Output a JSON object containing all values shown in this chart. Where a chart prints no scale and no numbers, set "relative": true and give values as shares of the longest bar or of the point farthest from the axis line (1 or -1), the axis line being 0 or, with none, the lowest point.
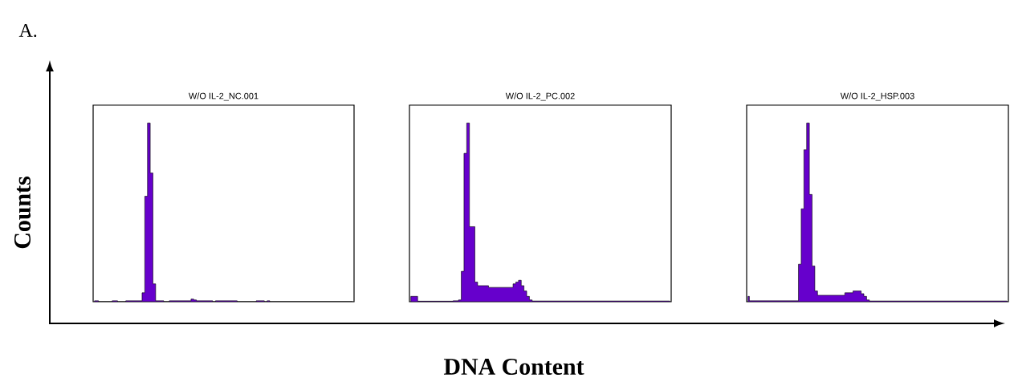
{
  "chart_data": [
    {
      "type": "area",
      "relative": true,
      "title": "W/O IL-2_NC.001",
      "ylabel": "Counts",
      "annotations": [
        "A."
      ],
      "categories": [
        null,
        null,
        null,
        null,
        null,
        null,
        null,
        null,
        null,
        null,
        null,
        null,
        null,
        null,
        null,
        null,
        null,
        null,
        null,
        null,
        null,
        null,
        null,
        null,
        null,
        null,
        null,
        null,
        null,
        null,
        null,
        null,
        null,
        null,
        null,
        null,
        null,
        null,
        null,
        null,
        null,
        null,
        null,
        null,
        null,
        null,
        null,
        null,
        null,
        null,
        null,
        null,
        null,
        null,
        null,
        null,
        null,
        null,
        null,
        null,
        null,
        null,
        null,
        null,
        null,
        null,
        null,
        null,
        null,
        null,
        null,
        null,
        null,
        null,
        null,
        null,
        null,
        null,
        null,
        null,
        null,
        null,
        null,
        null,
        null,
        null,
        null,
        null,
        null,
        null,
        null,
        null,
        null,
        null,
        null,
        null
      ],
      "series": [
        {
          "color": "#6600cc",
          "values": [
            0.005,
            0.005,
            0,
            0,
            0,
            0,
            0,
            0.005,
            0.005,
            0,
            0,
            0,
            0.005,
            0.005,
            0.005,
            0.005,
            0.005,
            0.005,
            0.05,
            0.59,
            1.0,
            0.72,
            0.1,
            0.005,
            0.005,
            0.005,
            0,
            0,
            0.005,
            0.005,
            0.005,
            0.005,
            0.005,
            0.005,
            0.005,
            0.005,
            0.015,
            0.01,
            0.005,
            0.005,
            0.005,
            0.005,
            0.005,
            0.005,
            0,
            0.005,
            0.005,
            0.005,
            0.005,
            0.005,
            0.005,
            0.005,
            0.005,
            0,
            0,
            0,
            0,
            0,
            0,
            0,
            0.005,
            0.005,
            0.005,
            0,
            0.005,
            0,
            0,
            0,
            0,
            0,
            0,
            0,
            0,
            0,
            0,
            0,
            0,
            0,
            0,
            0,
            0,
            0,
            0,
            0,
            0,
            0,
            0,
            0,
            0,
            0,
            0,
            0,
            0,
            0,
            0,
            0
          ]
        }
      ]
    },
    {
      "type": "area",
      "relative": true,
      "title": "W/O IL-2_PC.002",
      "xlabel": "DNA Content",
      "categories": [
        null,
        null,
        null,
        null,
        null,
        null,
        null,
        null,
        null,
        null,
        null,
        null,
        null,
        null,
        null,
        null,
        null,
        null,
        null,
        null,
        null,
        null,
        null,
        null,
        null,
        null,
        null,
        null,
        null,
        null,
        null,
        null,
        null,
        null,
        null,
        null,
        null,
        null,
        null,
        null,
        null,
        null,
        null,
        null,
        null,
        null,
        null,
        null,
        null,
        null,
        null,
        null,
        null,
        null,
        null,
        null,
        null,
        null,
        null,
        null,
        null,
        null,
        null,
        null,
        null,
        null,
        null,
        null,
        null,
        null,
        null,
        null,
        null,
        null,
        null,
        null,
        null,
        null,
        null,
        null,
        null,
        null,
        null,
        null,
        null,
        null,
        null,
        null,
        null,
        null,
        null,
        null,
        null,
        null,
        null,
        null
      ],
      "series": [
        {
          "color": "#6600cc",
          "values": [
            0.03,
            0.03,
            0.03,
            0.003,
            0.003,
            0.003,
            0.003,
            0.003,
            0.003,
            0.003,
            0.003,
            0.003,
            0.003,
            0.003,
            0.003,
            0.003,
            0.005,
            0.005,
            0.01,
            0.17,
            0.83,
            1.0,
            0.42,
            0.42,
            0.11,
            0.09,
            0.09,
            0.09,
            0.09,
            0.08,
            0.08,
            0.08,
            0.08,
            0.08,
            0.08,
            0.08,
            0.08,
            0.08,
            0.1,
            0.11,
            0.12,
            0.09,
            0.06,
            0.03,
            0.01,
            0.004,
            0.004,
            0.004,
            0.004,
            0.004,
            0.004,
            0.004,
            0.004,
            0.004,
            0.004,
            0.004,
            0.004,
            0.004,
            0.004,
            0.004,
            0.004,
            0.004,
            0.004,
            0.004,
            0.004,
            0.004,
            0.004,
            0.004,
            0.004,
            0.004,
            0.004,
            0.004,
            0.004,
            0.004,
            0.004,
            0.004,
            0.004,
            0.004,
            0.004,
            0.004,
            0.004,
            0.004,
            0.004,
            0.004,
            0.004,
            0.004,
            0.004,
            0.004,
            0.004,
            0.004,
            0.004,
            0.004,
            0.004,
            0.004,
            0.004,
            0.004
          ]
        }
      ]
    },
    {
      "type": "area",
      "relative": true,
      "title": "W/O IL-2_HSP.003",
      "categories": [
        null,
        null,
        null,
        null,
        null,
        null,
        null,
        null,
        null,
        null,
        null,
        null,
        null,
        null,
        null,
        null,
        null,
        null,
        null,
        null,
        null,
        null,
        null,
        null,
        null,
        null,
        null,
        null,
        null,
        null,
        null,
        null,
        null,
        null,
        null,
        null,
        null,
        null,
        null,
        null,
        null,
        null,
        null,
        null,
        null,
        null,
        null,
        null,
        null,
        null,
        null,
        null,
        null,
        null,
        null,
        null,
        null,
        null,
        null,
        null,
        null,
        null,
        null,
        null,
        null,
        null,
        null,
        null,
        null,
        null,
        null,
        null,
        null,
        null,
        null,
        null,
        null,
        null,
        null,
        null,
        null,
        null,
        null,
        null,
        null,
        null,
        null,
        null,
        null,
        null,
        null,
        null,
        null,
        null,
        null,
        null
      ],
      "series": [
        {
          "color": "#6600cc",
          "values": [
            0.03,
            0.005,
            0.005,
            0.005,
            0.005,
            0.005,
            0.005,
            0.005,
            0.005,
            0.005,
            0.005,
            0.005,
            0.005,
            0.005,
            0.005,
            0.005,
            0.005,
            0.005,
            0.005,
            0.21,
            0.52,
            0.85,
            1.0,
            0.6,
            0.2,
            0.06,
            0.036,
            0.036,
            0.036,
            0.036,
            0.036,
            0.036,
            0.036,
            0.036,
            0.036,
            0.036,
            0.05,
            0.05,
            0.05,
            0.06,
            0.06,
            0.06,
            0.045,
            0.03,
            0.01,
            0.004,
            0.004,
            0.004,
            0.004,
            0.004,
            0.004,
            0.004,
            0.004,
            0.004,
            0.004,
            0.004,
            0.004,
            0.004,
            0.004,
            0.004,
            0.004,
            0.004,
            0.004,
            0.004,
            0.004,
            0.004,
            0.004,
            0.004,
            0.004,
            0.004,
            0.004,
            0.004,
            0.004,
            0.004,
            0.004,
            0.004,
            0.004,
            0.004,
            0.004,
            0.004,
            0.004,
            0.004,
            0.004,
            0.004,
            0.004,
            0.004,
            0.004,
            0.004,
            0.004,
            0.004,
            0.004,
            0.004,
            0.004,
            0.004,
            0.004,
            0.004
          ]
        }
      ]
    }
  ]
}
